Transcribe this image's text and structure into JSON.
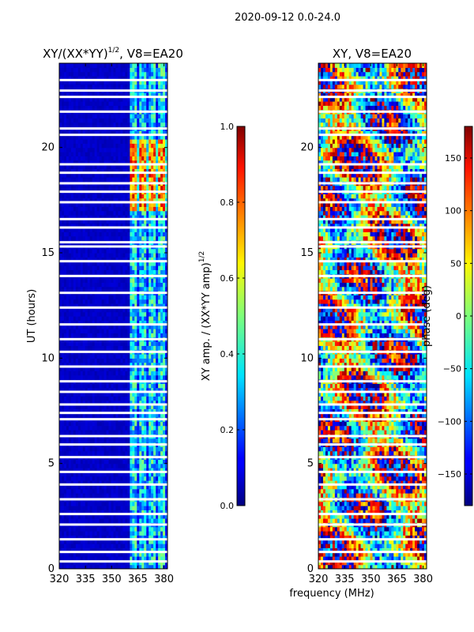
{
  "suptitle": "2020-09-12 0.0-24.0",
  "chart_data": [
    {
      "type": "heatmap",
      "title_prefix": "XY/(XX*YY)",
      "title_sup": "1/2",
      "title_suffix": ", V8=EA20",
      "ylabel": "UT (hours)",
      "xlabel": "",
      "xlim": [
        320,
        382
      ],
      "ylim": [
        0,
        24
      ],
      "xticks": [
        "320",
        "335",
        "350",
        "365",
        "380"
      ],
      "xtick_values": [
        320,
        335,
        350,
        365,
        380
      ],
      "yticks": [
        "0",
        "5",
        "10",
        "15",
        "20"
      ],
      "ytick_values": [
        0,
        5,
        10,
        15,
        20
      ],
      "colorbar": {
        "label_main": "XY amp. / (XX*YY amp)",
        "label_sup": "1/2",
        "range": [
          0.0,
          1.0
        ],
        "ticks": [
          "0.0",
          "0.2",
          "0.4",
          "0.6",
          "0.8",
          "1.0"
        ],
        "tick_values": [
          0.0,
          0.2,
          0.4,
          0.6,
          0.8,
          1.0
        ],
        "colormap": "jet"
      },
      "description_values": {
        "background_level": 0.05,
        "band_360_382_level": 0.35,
        "elevated_hours": [
          17.0,
          20.5
        ],
        "elevated_level": 0.75
      }
    },
    {
      "type": "heatmap",
      "title": "XY, V8=EA20",
      "xlabel": "frequency (MHz)",
      "ylabel": "",
      "xlim": [
        320,
        382
      ],
      "ylim": [
        0,
        24
      ],
      "xticks": [
        "320",
        "335",
        "350",
        "365",
        "380"
      ],
      "xtick_values": [
        320,
        335,
        350,
        365,
        380
      ],
      "yticks": [
        "0",
        "5",
        "10",
        "15",
        "20"
      ],
      "ytick_values": [
        0,
        5,
        10,
        15,
        20
      ],
      "colorbar": {
        "label": "phase (deg)",
        "range": [
          -180,
          180
        ],
        "ticks": [
          "−150",
          "−100",
          "−50",
          "0",
          "50",
          "100",
          "150"
        ],
        "tick_values": [
          -150,
          -100,
          -50,
          0,
          50,
          100,
          150
        ],
        "colormap": "jet"
      }
    }
  ],
  "flagged_hours": [
    0.35,
    0.8,
    1.4,
    2.1,
    2.6,
    3.3,
    4.0,
    4.6,
    5.3,
    5.9,
    6.3,
    7.1,
    7.4,
    7.8,
    8.4,
    8.9,
    9.6,
    10.3,
    10.9,
    11.6,
    12.4,
    13.1,
    13.9,
    14.6,
    15.3,
    15.5,
    16.2,
    16.6,
    17.4,
    17.9,
    18.3,
    18.8,
    19.2,
    20.6,
    20.9,
    21.7,
    22.4,
    22.7,
    23.2
  ]
}
